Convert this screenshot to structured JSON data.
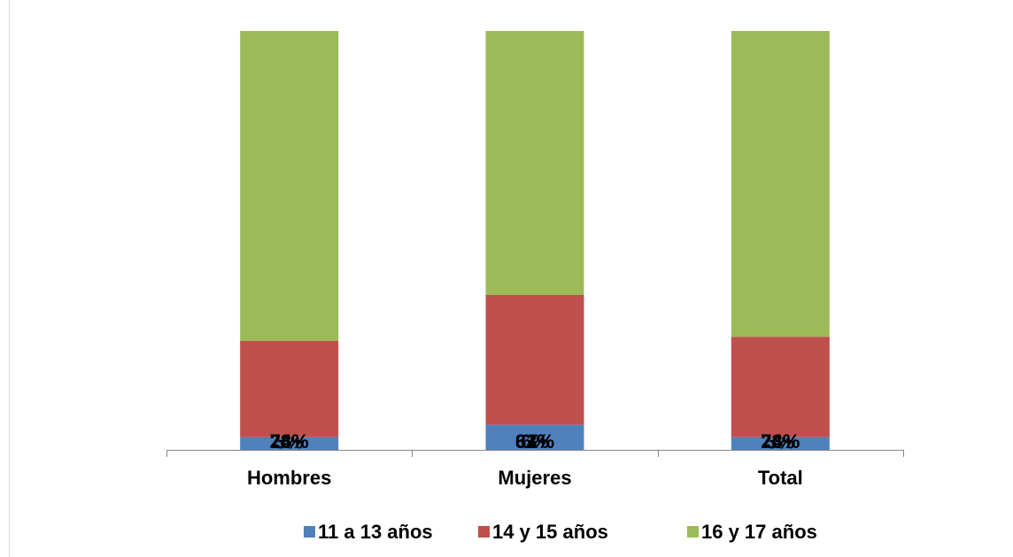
{
  "chart_data": {
    "type": "stacked_bar",
    "categories": [
      "Hombres",
      "Mujeres",
      "Total"
    ],
    "series": [
      {
        "name": "11 a 13 años",
        "color": "#4f81bd",
        "values": [
          3,
          6,
          3
        ]
      },
      {
        "name": "14 y 15 años",
        "color": "#c0504d",
        "values": [
          23,
          31,
          24
        ]
      },
      {
        "name": "16 y 17 años",
        "color": "#9bbb59",
        "values": [
          74,
          63,
          73
        ]
      }
    ],
    "value_labels": [
      [
        "3%",
        "6%",
        "3%"
      ],
      [
        "23%",
        "31%",
        "24%"
      ],
      [
        "74%",
        "63%",
        "73%"
      ]
    ],
    "ylim": [
      0,
      100
    ],
    "legend": "bottom"
  }
}
